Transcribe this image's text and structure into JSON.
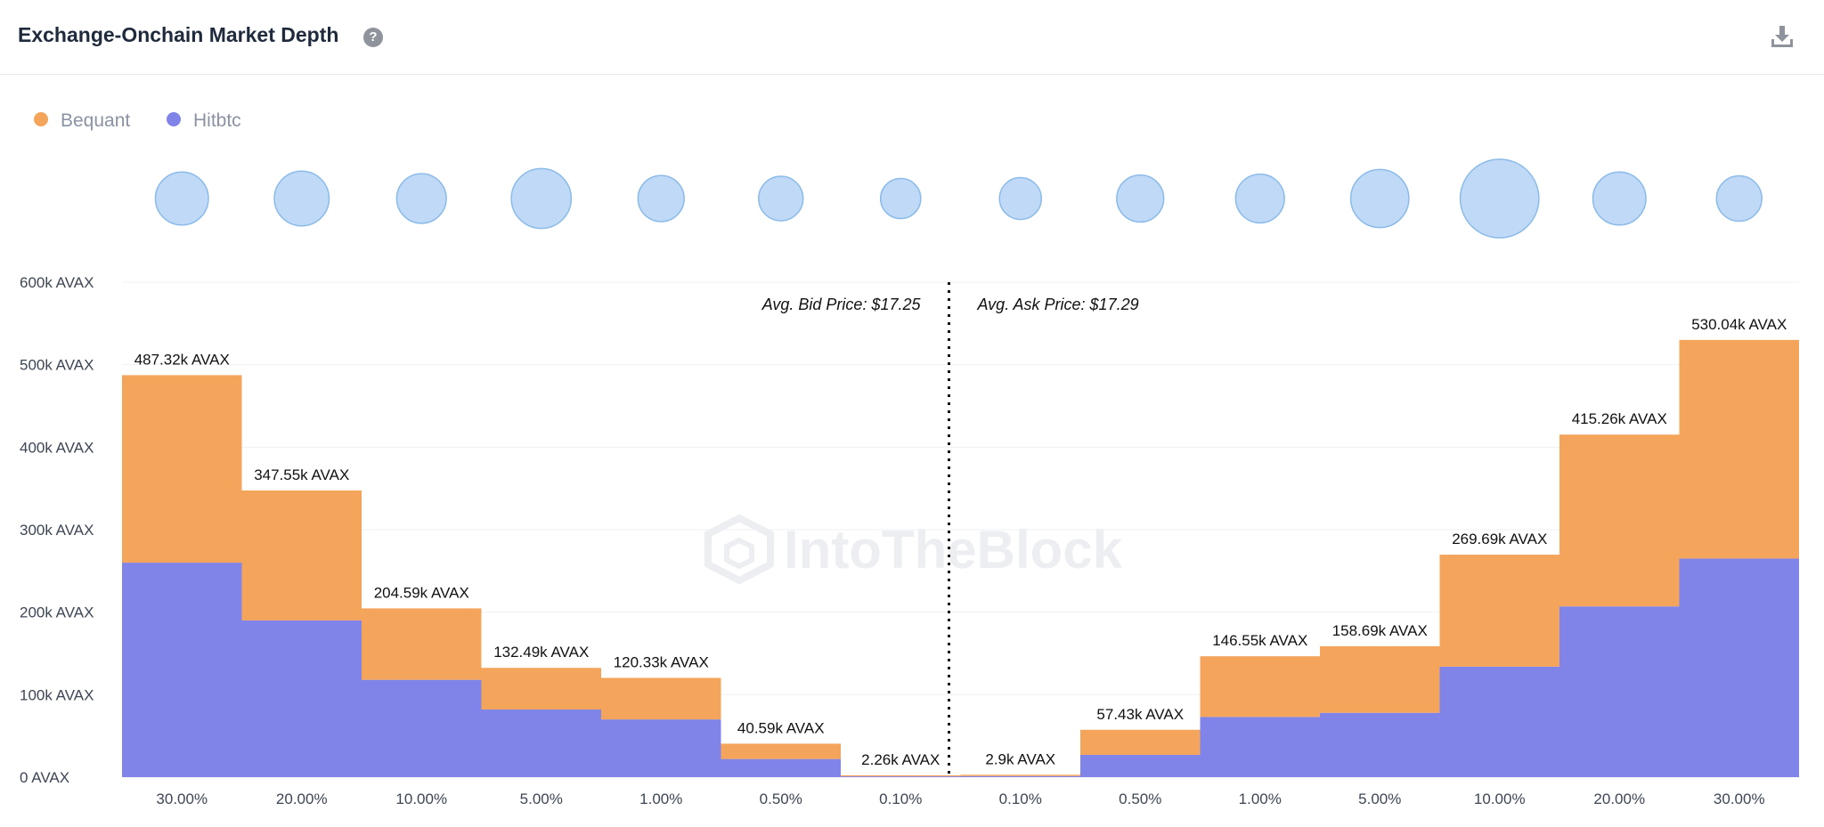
{
  "header": {
    "title": "Exchange-Onchain Market Depth",
    "help_icon": "?",
    "download_icon": "download-icon"
  },
  "legend": [
    {
      "name": "Bequant",
      "color": "#f5a55b"
    },
    {
      "name": "Hitbtc",
      "color": "#8084e8"
    }
  ],
  "watermark": "IntoTheBlock",
  "chart_data": {
    "type": "bar",
    "stacked": true,
    "categories": [
      "30.00%",
      "20.00%",
      "10.00%",
      "5.00%",
      "1.00%",
      "0.50%",
      "0.10%",
      "0.10%",
      "0.50%",
      "1.00%",
      "5.00%",
      "10.00%",
      "20.00%",
      "30.00%"
    ],
    "sides": [
      "bid",
      "bid",
      "bid",
      "bid",
      "bid",
      "bid",
      "bid",
      "ask",
      "ask",
      "ask",
      "ask",
      "ask",
      "ask",
      "ask"
    ],
    "series": [
      {
        "name": "Hitbtc",
        "color": "#8084e8",
        "values": [
          260000,
          190000,
          118000,
          82000,
          70000,
          22000,
          1000,
          1300,
          27000,
          73000,
          78000,
          134000,
          207000,
          265000
        ]
      },
      {
        "name": "Bequant",
        "color": "#f5a55b",
        "values": [
          227320,
          157550,
          86590,
          50490,
          50330,
          18590,
          1260,
          1600,
          30430,
          73550,
          80690,
          135690,
          208260,
          265040
        ]
      }
    ],
    "totals": [
      487320,
      347550,
      204590,
      132490,
      120330,
      40590,
      2260,
      2900,
      57430,
      146550,
      158690,
      269690,
      415260,
      530040
    ],
    "total_labels": [
      "487.32k AVAX",
      "347.55k AVAX",
      "204.59k AVAX",
      "132.49k AVAX",
      "120.33k AVAX",
      "40.59k AVAX",
      "2.26k AVAX",
      "2.9k AVAX",
      "57.43k AVAX",
      "146.55k AVAX",
      "158.69k AVAX",
      "269.69k AVAX",
      "415.26k AVAX",
      "530.04k AVAX"
    ],
    "bubbles": [
      0.62,
      0.64,
      0.58,
      0.7,
      0.54,
      0.52,
      0.47,
      0.49,
      0.55,
      0.57,
      0.68,
      0.92,
      0.62,
      0.53
    ],
    "bubble_color": "#bfd9f7",
    "yticks": [
      0,
      100000,
      200000,
      300000,
      400000,
      500000,
      600000
    ],
    "ytick_labels": [
      "0 AVAX",
      "100k AVAX",
      "200k AVAX",
      "300k AVAX",
      "400k AVAX",
      "500k AVAX",
      "600k AVAX"
    ],
    "ylim": [
      0,
      600000
    ],
    "grid": true,
    "legend_position": "top-left",
    "avg_bid_label": "Avg. Bid Price: $17.25",
    "avg_ask_label": "Avg. Ask Price: $17.29"
  }
}
